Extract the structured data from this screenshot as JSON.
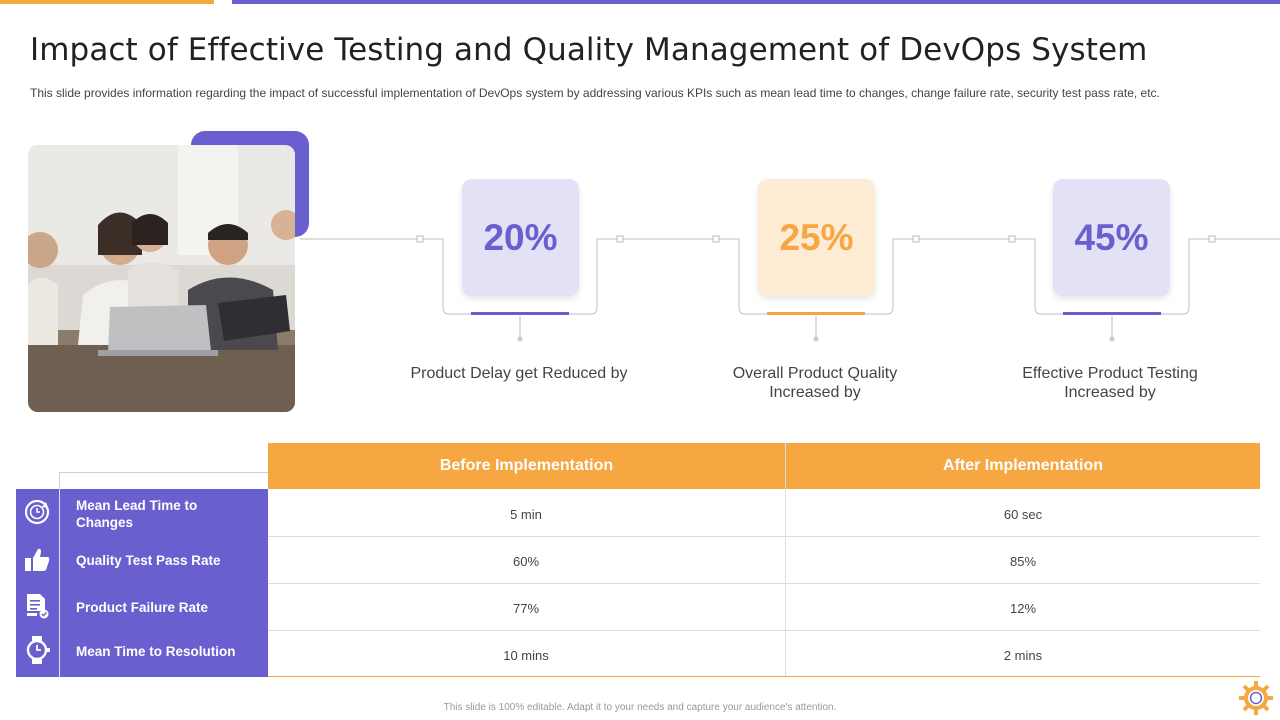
{
  "title": "Impact of Effective Testing and Quality Management of DevOps System",
  "subtitle": "This slide provides information regarding the impact of successful implementation of DevOps system by addressing various KPIs such as mean lead time to changes, change failure rate, security test pass rate, etc.",
  "colors": {
    "accent_purple": "#6a5fcf",
    "accent_orange": "#f6a742",
    "kpi_purple_bg": "#e3e1f6",
    "kpi_orange_bg": "#fdebd3"
  },
  "photo": {
    "icon": "team-meeting-photo"
  },
  "kpis": [
    {
      "value": "20%",
      "label": "Product Delay get Reduced by",
      "theme": "purple"
    },
    {
      "value": "25%",
      "label": "Overall Product Quality Increased by",
      "theme": "orange"
    },
    {
      "value": "45%",
      "label": "Effective Product Testing Increased by",
      "theme": "purple"
    }
  ],
  "table": {
    "columns": [
      "Before  Implementation",
      "After Implementation"
    ],
    "rows": [
      {
        "metric": "Mean Lead Time to Changes",
        "icon": "clock-cycle-icon",
        "before": "5 min",
        "after": "60 sec"
      },
      {
        "metric": "Quality Test Pass Rate",
        "icon": "thumbs-up-icon",
        "before": "60%",
        "after": "85%"
      },
      {
        "metric": "Product Failure Rate",
        "icon": "document-check-icon",
        "before": "77%",
        "after": "12%"
      },
      {
        "metric": "Mean Time to Resolution",
        "icon": "stopwatch-icon",
        "before": "10 mins",
        "after": "2 mins"
      }
    ]
  },
  "footer": "This slide is 100% editable. Adapt it to your needs and capture your audience's attention.",
  "logo": {
    "icon": "gear-logo-icon"
  }
}
